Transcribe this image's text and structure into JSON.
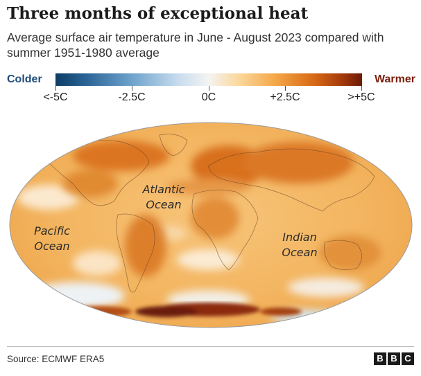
{
  "title": "Three months of exceptional heat",
  "subtitle": "Average surface air temperature in June - August 2023 compared with summer 1951-1980 average",
  "legend": {
    "colder_label": "Colder",
    "warmer_label": "Warmer",
    "ticks": [
      "<-5C",
      "-2.5C",
      "0C",
      "+2.5C",
      ">+5C"
    ],
    "colors": {
      "cold": "#0d3d66",
      "neutral": "#f4f4f2",
      "warm": "#6b1a08"
    }
  },
  "map": {
    "ocean_labels": {
      "atlantic_line1": "Atlantic",
      "atlantic_line2": "Ocean",
      "pacific_line1": "Pacific",
      "pacific_line2": "Ocean",
      "indian_line1": "Indian",
      "indian_line2": "Ocean"
    }
  },
  "footer": {
    "source": "Source: ECMWF ERA5",
    "logo_letters": [
      "B",
      "B",
      "C"
    ]
  }
}
